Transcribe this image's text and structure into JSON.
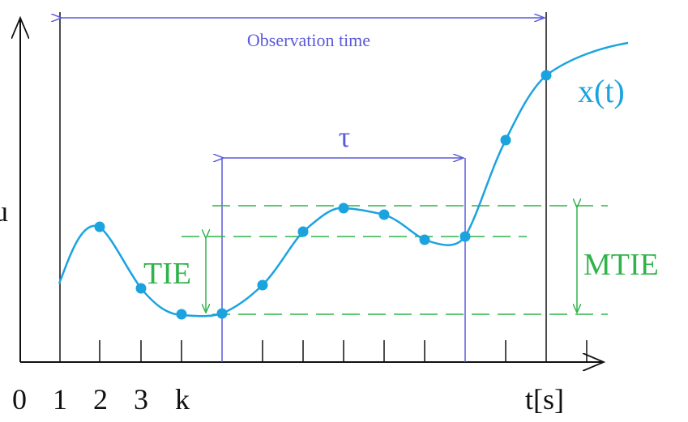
{
  "colors": {
    "axis": "#111111",
    "curve": "#1ba3df",
    "points": "#1ba3df",
    "annotation_blue": "#5a5adc",
    "annotation_green": "#2fb34a"
  },
  "labels": {
    "observation_time": "Observation time",
    "tau": "τ",
    "x_t": "x(t)",
    "y_axis": "u",
    "tie": "TIE",
    "mtie": "MTIE"
  },
  "x_axis": {
    "tick_labels": [
      "0",
      "1",
      "2",
      "3",
      "k",
      "t[s]"
    ]
  }
}
